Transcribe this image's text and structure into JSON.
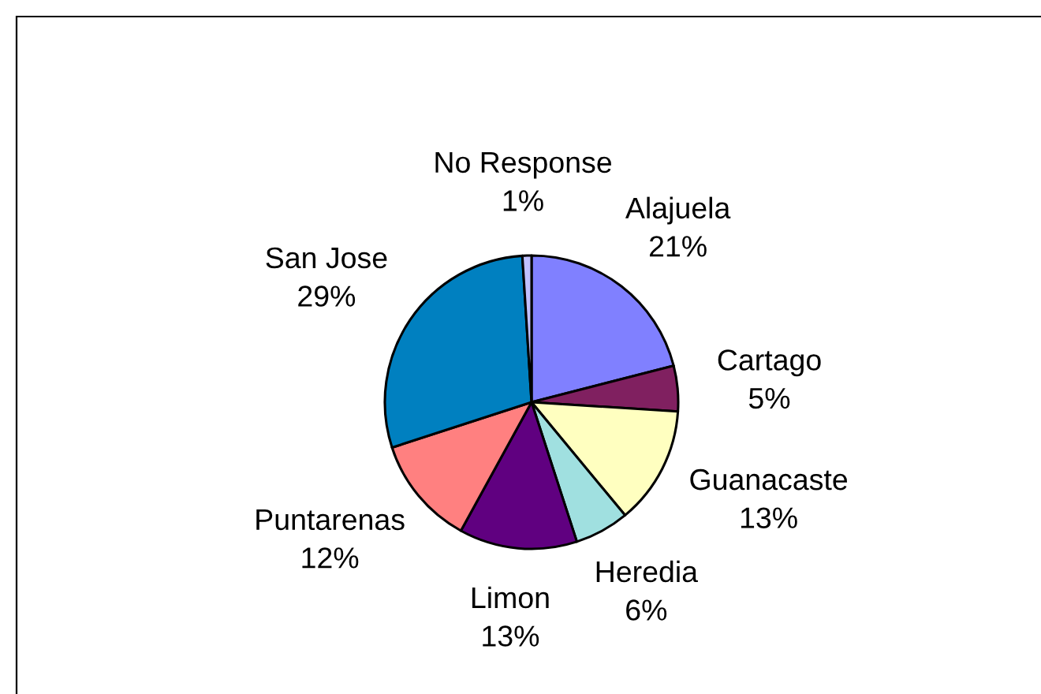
{
  "chart_data": {
    "type": "pie",
    "categories": [
      "Alajuela",
      "Cartago",
      "Guanacaste",
      "Heredia",
      "Limon",
      "Puntarenas",
      "San Jose",
      "No Response"
    ],
    "values": [
      21,
      5,
      13,
      6,
      13,
      12,
      29,
      1
    ],
    "value_labels": [
      "21%",
      "5%",
      "13%",
      "6%",
      "13%",
      "12%",
      "29%",
      "1%"
    ],
    "colors": [
      "#8080ff",
      "#802060",
      "#ffffc0",
      "#a0e0e0",
      "#600080",
      "#ff8080",
      "#0080c0",
      "#c0c0ff"
    ]
  }
}
